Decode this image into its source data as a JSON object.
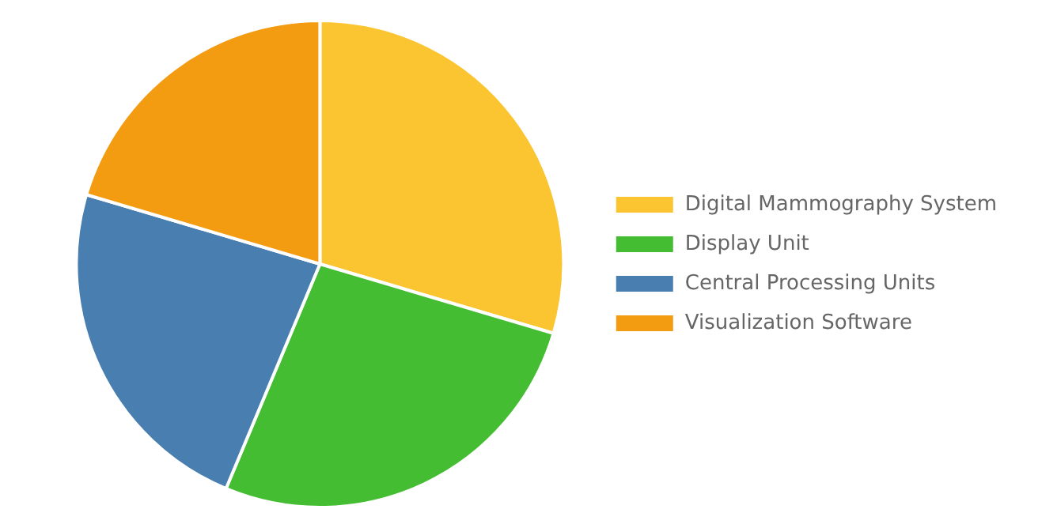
{
  "chart_data": {
    "type": "pie",
    "categories": [
      "Digital Mammography System",
      "Display Unit",
      "Central Processing Units",
      "Visualization Software"
    ],
    "values": [
      29.6,
      26.7,
      23.3,
      20.4
    ],
    "colors": [
      "#fbc531",
      "#44bd32",
      "#487eb0",
      "#f39c12"
    ],
    "legend": "right"
  }
}
